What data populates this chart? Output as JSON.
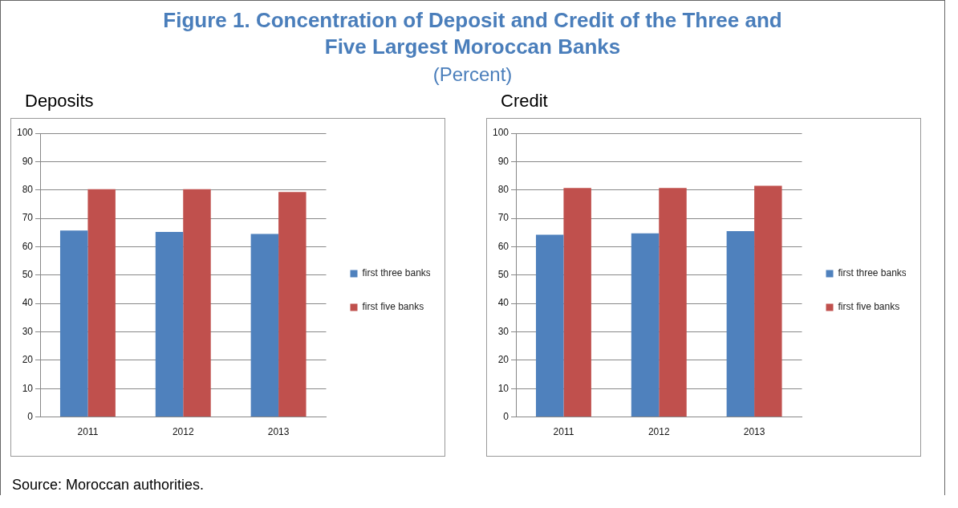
{
  "chart_data": [
    {
      "type": "other",
      "title": "Figure 1. Concentration of Deposit and Credit of the Three and Five Largest Moroccan Banks",
      "subtitle": "(Percent)",
      "annotations": [
        "Source: Moroccan authorities."
      ]
    },
    {
      "type": "bar",
      "title": "Deposits",
      "categories": [
        "2011",
        "2012",
        "2013"
      ],
      "series": [
        {
          "name": "first three banks",
          "color": "#4f81bd",
          "values": [
            65.7,
            65.2,
            64.5
          ]
        },
        {
          "name": "first five banks",
          "color": "#c0504d",
          "values": [
            80.3,
            80.3,
            79.3
          ]
        }
      ],
      "ylim": [
        0,
        100
      ],
      "yticks": [
        0,
        10,
        20,
        30,
        40,
        50,
        60,
        70,
        80,
        90,
        100
      ],
      "grid": "y",
      "legend": "right"
    },
    {
      "type": "bar",
      "title": "Credit",
      "categories": [
        "2011",
        "2012",
        "2013"
      ],
      "series": [
        {
          "name": "first three banks",
          "color": "#4f81bd",
          "values": [
            64.2,
            64.7,
            65.5
          ]
        },
        {
          "name": "first five banks",
          "color": "#c0504d",
          "values": [
            80.7,
            80.7,
            81.5
          ]
        }
      ],
      "ylim": [
        0,
        100
      ],
      "yticks": [
        0,
        10,
        20,
        30,
        40,
        50,
        60,
        70,
        80,
        90,
        100
      ],
      "grid": "y",
      "legend": "right"
    }
  ]
}
